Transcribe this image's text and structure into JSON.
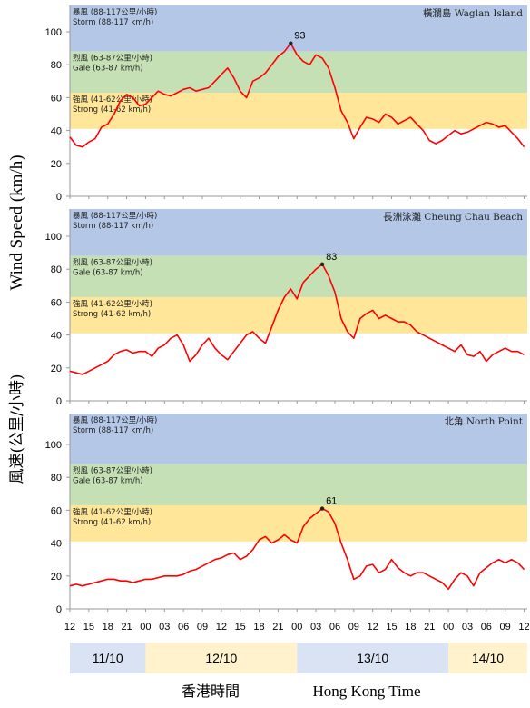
{
  "bands": {
    "storm": {
      "zh": "暴風 (88-117公里/小時)",
      "en": "Storm (88-117 km/h)",
      "from": 88,
      "to": 117,
      "color": "#b4c7e7"
    },
    "gale": {
      "zh": "烈風 (63-87公里/小時)",
      "en": "Gale (63-87 km/h)",
      "from": 63,
      "to": 88,
      "color": "#c5e0b4"
    },
    "strong": {
      "zh": "強風 (41-62公里/小時)",
      "en": "Strong (41-62 km/h)",
      "from": 41,
      "to": 63,
      "color": "#ffe699"
    }
  },
  "y_label_en": "Wind Speed (km/h)",
  "y_label_zh": "風速(公里/小時)",
  "x_label_zh": "香港時間",
  "x_label_en": "Hong Kong Time",
  "dates": [
    {
      "label": "11/10",
      "start_hour": 0,
      "end_hour": 12,
      "color": "#dae3f3"
    },
    {
      "label": "12/10",
      "start_hour": 12,
      "end_hour": 36,
      "color": "#fff2cc"
    },
    {
      "label": "13/10",
      "start_hour": 36,
      "end_hour": 60,
      "color": "#dae3f3"
    },
    {
      "label": "14/10",
      "start_hour": 60,
      "end_hour": 72.5,
      "color": "#fff2cc"
    }
  ],
  "chart_data": [
    {
      "type": "line",
      "station": "橫瀾島 Waglan Island",
      "x_unit": "hours since 11/10 12:00 HKT",
      "xlim": [
        0,
        72.5
      ],
      "ylim": [
        0,
        100
      ],
      "y_ticks": [
        0,
        20,
        40,
        60,
        80,
        100
      ],
      "x_tick_labels": [
        "12",
        "15",
        "18",
        "21",
        "00",
        "03",
        "06",
        "09",
        "12",
        "15",
        "18",
        "21",
        "00",
        "03",
        "06",
        "09",
        "12",
        "15",
        "18",
        "21",
        "00",
        "03",
        "06",
        "09",
        "12"
      ],
      "peak": {
        "x": 35,
        "y": 93,
        "label": "93"
      },
      "series": [
        {
          "color": "#ff0000",
          "points": [
            [
              0,
              36
            ],
            [
              1,
              31
            ],
            [
              2,
              30
            ],
            [
              3,
              33
            ],
            [
              4,
              35
            ],
            [
              5,
              42
            ],
            [
              6,
              44
            ],
            [
              7,
              50
            ],
            [
              8,
              58
            ],
            [
              9,
              62
            ],
            [
              10,
              60
            ],
            [
              11,
              55
            ],
            [
              12,
              56
            ],
            [
              13,
              60
            ],
            [
              14,
              64
            ],
            [
              15,
              62
            ],
            [
              16,
              61
            ],
            [
              17,
              63
            ],
            [
              18,
              65
            ],
            [
              19,
              66
            ],
            [
              20,
              64
            ],
            [
              21,
              65
            ],
            [
              22,
              66
            ],
            [
              23,
              70
            ],
            [
              24,
              74
            ],
            [
              25,
              78
            ],
            [
              26,
              72
            ],
            [
              27,
              64
            ],
            [
              28,
              60
            ],
            [
              29,
              70
            ],
            [
              30,
              72
            ],
            [
              31,
              75
            ],
            [
              32,
              80
            ],
            [
              33,
              85
            ],
            [
              34,
              88
            ],
            [
              35,
              93
            ],
            [
              36,
              86
            ],
            [
              37,
              82
            ],
            [
              38,
              80
            ],
            [
              39,
              86
            ],
            [
              40,
              84
            ],
            [
              41,
              78
            ],
            [
              42,
              66
            ],
            [
              43,
              52
            ],
            [
              44,
              45
            ],
            [
              45,
              35
            ],
            [
              46,
              42
            ],
            [
              47,
              48
            ],
            [
              48,
              47
            ],
            [
              49,
              45
            ],
            [
              50,
              50
            ],
            [
              51,
              48
            ],
            [
              52,
              44
            ],
            [
              53,
              46
            ],
            [
              54,
              48
            ],
            [
              55,
              44
            ],
            [
              56,
              40
            ],
            [
              57,
              34
            ],
            [
              58,
              32
            ],
            [
              59,
              34
            ],
            [
              60,
              37
            ],
            [
              61,
              40
            ],
            [
              62,
              38
            ],
            [
              63,
              39
            ],
            [
              64,
              41
            ],
            [
              65,
              43
            ],
            [
              66,
              45
            ],
            [
              67,
              44
            ],
            [
              68,
              42
            ],
            [
              69,
              43
            ],
            [
              70,
              39
            ],
            [
              71,
              35
            ],
            [
              72,
              30
            ]
          ]
        }
      ]
    },
    {
      "type": "line",
      "station": "長洲泳灘 Cheung Chau Beach",
      "x_unit": "hours since 11/10 12:00 HKT",
      "xlim": [
        0,
        72.5
      ],
      "ylim": [
        0,
        100
      ],
      "y_ticks": [
        0,
        20,
        40,
        60,
        80,
        100
      ],
      "x_tick_labels": [
        "12",
        "15",
        "18",
        "21",
        "00",
        "03",
        "06",
        "09",
        "12",
        "15",
        "18",
        "21",
        "00",
        "03",
        "06",
        "09",
        "12",
        "15",
        "18",
        "21",
        "00",
        "03",
        "06",
        "09",
        "12"
      ],
      "peak": {
        "x": 40,
        "y": 83,
        "label": "83"
      },
      "series": [
        {
          "color": "#ff0000",
          "points": [
            [
              0,
              18
            ],
            [
              1,
              17
            ],
            [
              2,
              16
            ],
            [
              3,
              18
            ],
            [
              4,
              20
            ],
            [
              5,
              22
            ],
            [
              6,
              24
            ],
            [
              7,
              28
            ],
            [
              8,
              30
            ],
            [
              9,
              31
            ],
            [
              10,
              29
            ],
            [
              11,
              30
            ],
            [
              12,
              30
            ],
            [
              13,
              27
            ],
            [
              14,
              32
            ],
            [
              15,
              34
            ],
            [
              16,
              38
            ],
            [
              17,
              40
            ],
            [
              18,
              34
            ],
            [
              19,
              24
            ],
            [
              20,
              28
            ],
            [
              21,
              34
            ],
            [
              22,
              38
            ],
            [
              23,
              32
            ],
            [
              24,
              28
            ],
            [
              25,
              25
            ],
            [
              26,
              30
            ],
            [
              27,
              35
            ],
            [
              28,
              40
            ],
            [
              29,
              42
            ],
            [
              30,
              38
            ],
            [
              31,
              35
            ],
            [
              32,
              45
            ],
            [
              33,
              55
            ],
            [
              34,
              63
            ],
            [
              35,
              68
            ],
            [
              36,
              62
            ],
            [
              37,
              72
            ],
            [
              38,
              76
            ],
            [
              39,
              80
            ],
            [
              40,
              83
            ],
            [
              41,
              76
            ],
            [
              42,
              66
            ],
            [
              43,
              50
            ],
            [
              44,
              42
            ],
            [
              45,
              38
            ],
            [
              46,
              50
            ],
            [
              47,
              53
            ],
            [
              48,
              55
            ],
            [
              49,
              50
            ],
            [
              50,
              52
            ],
            [
              51,
              50
            ],
            [
              52,
              48
            ],
            [
              53,
              48
            ],
            [
              54,
              46
            ],
            [
              55,
              42
            ],
            [
              56,
              40
            ],
            [
              57,
              38
            ],
            [
              58,
              36
            ],
            [
              59,
              34
            ],
            [
              60,
              32
            ],
            [
              61,
              30
            ],
            [
              62,
              34
            ],
            [
              63,
              28
            ],
            [
              64,
              27
            ],
            [
              65,
              30
            ],
            [
              66,
              24
            ],
            [
              67,
              28
            ],
            [
              68,
              30
            ],
            [
              69,
              32
            ],
            [
              70,
              30
            ],
            [
              71,
              30
            ],
            [
              72,
              28
            ]
          ]
        }
      ]
    },
    {
      "type": "line",
      "station": "北角 North Point",
      "x_unit": "hours since 11/10 12:00 HKT",
      "xlim": [
        0,
        72.5
      ],
      "ylim": [
        0,
        100
      ],
      "y_ticks": [
        0,
        20,
        40,
        60,
        80,
        100
      ],
      "x_tick_labels": [
        "12",
        "15",
        "18",
        "21",
        "00",
        "03",
        "06",
        "09",
        "12",
        "15",
        "18",
        "21",
        "00",
        "03",
        "06",
        "09",
        "12",
        "15",
        "18",
        "21",
        "00",
        "03",
        "06",
        "09",
        "12"
      ],
      "peak": {
        "x": 40,
        "y": 61,
        "label": "61"
      },
      "series": [
        {
          "color": "#ff0000",
          "points": [
            [
              0,
              14
            ],
            [
              1,
              15
            ],
            [
              2,
              14
            ],
            [
              3,
              15
            ],
            [
              4,
              16
            ],
            [
              5,
              17
            ],
            [
              6,
              18
            ],
            [
              7,
              18
            ],
            [
              8,
              17
            ],
            [
              9,
              17
            ],
            [
              10,
              16
            ],
            [
              11,
              17
            ],
            [
              12,
              18
            ],
            [
              13,
              18
            ],
            [
              14,
              19
            ],
            [
              15,
              20
            ],
            [
              16,
              20
            ],
            [
              17,
              20
            ],
            [
              18,
              21
            ],
            [
              19,
              23
            ],
            [
              20,
              24
            ],
            [
              21,
              26
            ],
            [
              22,
              28
            ],
            [
              23,
              30
            ],
            [
              24,
              31
            ],
            [
              25,
              33
            ],
            [
              26,
              34
            ],
            [
              27,
              30
            ],
            [
              28,
              32
            ],
            [
              29,
              36
            ],
            [
              30,
              42
            ],
            [
              31,
              44
            ],
            [
              32,
              40
            ],
            [
              33,
              42
            ],
            [
              34,
              45
            ],
            [
              35,
              42
            ],
            [
              36,
              40
            ],
            [
              37,
              50
            ],
            [
              38,
              55
            ],
            [
              39,
              58
            ],
            [
              40,
              61
            ],
            [
              41,
              59
            ],
            [
              42,
              52
            ],
            [
              43,
              40
            ],
            [
              44,
              30
            ],
            [
              45,
              18
            ],
            [
              46,
              20
            ],
            [
              47,
              26
            ],
            [
              48,
              27
            ],
            [
              49,
              22
            ],
            [
              50,
              24
            ],
            [
              51,
              30
            ],
            [
              52,
              25
            ],
            [
              53,
              22
            ],
            [
              54,
              20
            ],
            [
              55,
              22
            ],
            [
              56,
              22
            ],
            [
              57,
              20
            ],
            [
              58,
              18
            ],
            [
              59,
              16
            ],
            [
              60,
              12
            ],
            [
              61,
              18
            ],
            [
              62,
              22
            ],
            [
              63,
              20
            ],
            [
              64,
              14
            ],
            [
              65,
              22
            ],
            [
              66,
              25
            ],
            [
              67,
              28
            ],
            [
              68,
              30
            ],
            [
              69,
              28
            ],
            [
              70,
              30
            ],
            [
              71,
              28
            ],
            [
              72,
              24
            ]
          ]
        }
      ]
    }
  ]
}
